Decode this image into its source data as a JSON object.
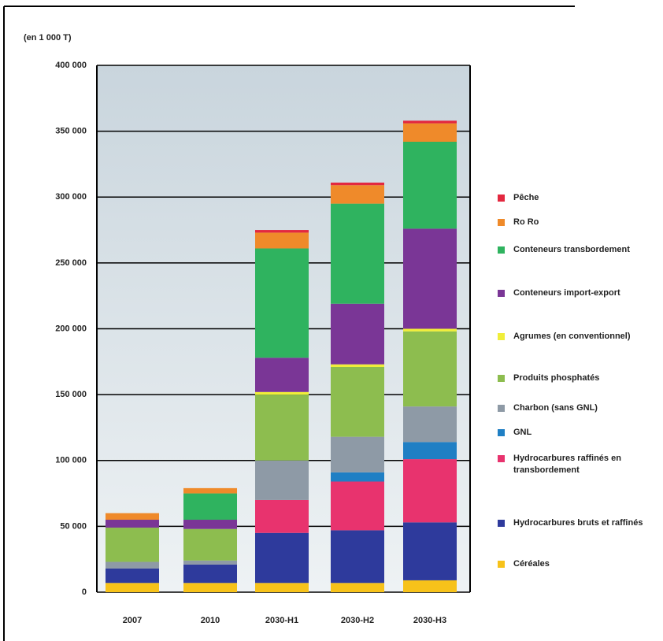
{
  "chart_data": {
    "type": "stacked-bar",
    "unit_label": "(en 1 000 T)",
    "categories": [
      "2007",
      "2010",
      "2030-H1",
      "2030-H2",
      "2030-H3"
    ],
    "ylim": [
      0,
      400000
    ],
    "yticks": [
      0,
      {
        "value": 50000,
        "label": "50 000"
      },
      {
        "value": 100000,
        "label": "100 000"
      },
      {
        "value": 150000,
        "label": "150 000"
      },
      {
        "value": 200000,
        "label": "200 000"
      },
      {
        "value": 250000,
        "label": "250 000"
      },
      {
        "value": 300000,
        "label": "300 000"
      },
      {
        "value": 350000,
        "label": "350 000"
      },
      {
        "value": 400000,
        "label": "400 000"
      }
    ],
    "grid": true,
    "series": [
      {
        "name": "Céréales",
        "color": "#f7c21a",
        "values": [
          7000,
          7000,
          7000,
          7000,
          9000
        ]
      },
      {
        "name": "Hydrocarbures bruts et raffinés",
        "color": "#2e3a9c",
        "values": [
          11000,
          14000,
          38000,
          40000,
          44000
        ]
      },
      {
        "name": "Hydrocarbures raffinés en transbordement",
        "color": "#e8336e",
        "values": [
          0,
          0,
          25000,
          37000,
          48000
        ]
      },
      {
        "name": "GNL",
        "color": "#1f7fc4",
        "values": [
          0,
          0,
          0,
          7000,
          13000
        ]
      },
      {
        "name": "Charbon (sans GNL)",
        "color": "#8e9aa6",
        "values": [
          5000,
          3000,
          30000,
          27000,
          27000
        ]
      },
      {
        "name": "Produits phosphatés",
        "color": "#8dbd4f",
        "values": [
          26000,
          24000,
          50000,
          53000,
          57000
        ]
      },
      {
        "name": "Agrumes (en conventionnel)",
        "color": "#f0ee3a",
        "values": [
          0,
          0,
          2000,
          2000,
          2000
        ]
      },
      {
        "name": "Conteneurs import-export",
        "color": "#7a3696",
        "values": [
          6000,
          7000,
          26000,
          46000,
          76000
        ]
      },
      {
        "name": "Conteneurs transbordement",
        "color": "#2fb35f",
        "values": [
          0,
          20000,
          83000,
          76000,
          66000
        ]
      },
      {
        "name": "Ro Ro",
        "color": "#ef8a2a",
        "values": [
          5000,
          4000,
          12000,
          14000,
          14000
        ]
      },
      {
        "name": "Pêche",
        "color": "#e3283f",
        "values": [
          0,
          0,
          2000,
          2000,
          2000
        ]
      }
    ]
  }
}
